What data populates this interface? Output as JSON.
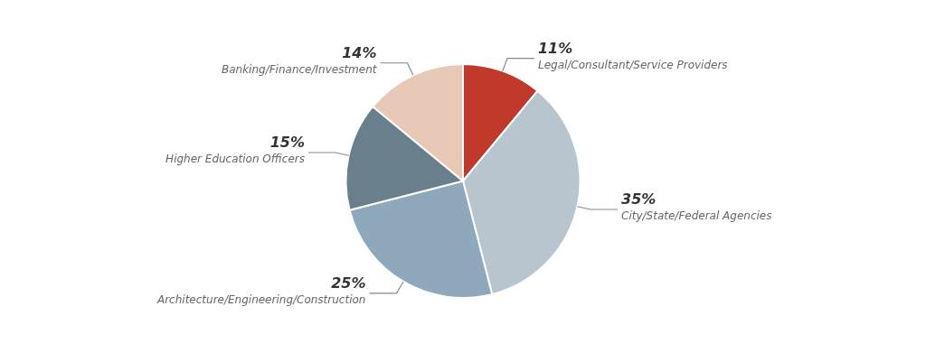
{
  "chart_data": {
    "type": "pie",
    "categories": [
      "Legal/Consultant/Service Providers",
      "City/State/Federal Agencies",
      "Architecture/Engineering/Construction",
      "Higher Education Officers",
      "Banking/Finance/Investment"
    ],
    "values": [
      11,
      35,
      25,
      15,
      14
    ],
    "value_labels": [
      "11%",
      "35%",
      "25%",
      "15%",
      "14%"
    ],
    "colors": [
      "#c0392b",
      "#b8c4ce",
      "#8fa8bc",
      "#6a7f8c",
      "#e8c9b8"
    ],
    "data_labels": true
  }
}
